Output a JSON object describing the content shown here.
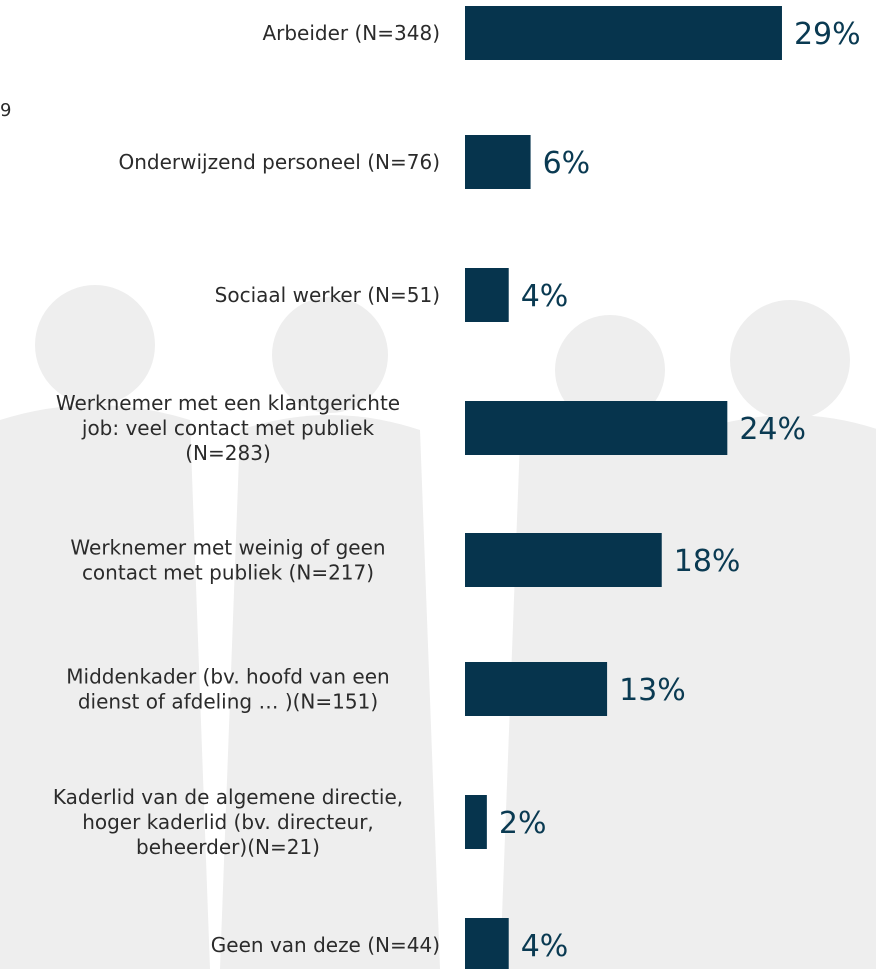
{
  "stray_text": "9",
  "colors": {
    "bar": "#06344d",
    "value_text": "#0a3a52",
    "label_text": "#2b2b2b"
  },
  "chart_data": {
    "type": "bar",
    "orientation": "horizontal",
    "categories": [
      [
        "Arbeider (N=348)"
      ],
      [
        "Onderwijzend personeel (N=76)"
      ],
      [
        "Sociaal werker (N=51)"
      ],
      [
        "Werknemer met een klantgerichte",
        "job: veel contact met publiek",
        "(N=283)"
      ],
      [
        "Werknemer met weinig of geen",
        "contact met publiek (N=217)"
      ],
      [
        "Middenkader (bv. hoofd van een",
        "dienst of afdeling … )(N=151)"
      ],
      [
        "Kaderlid van de algemene directie,",
        "hoger kaderlid (bv. directeur,",
        "beheerder)(N=21)"
      ],
      [
        "Geen van deze (N=44)"
      ]
    ],
    "values": [
      29,
      6,
      4,
      24,
      18,
      13,
      2,
      4
    ],
    "value_labels": [
      "29%",
      "6%",
      "4%",
      "24%",
      "18%",
      "13%",
      "2%",
      "4%"
    ],
    "unit": "%",
    "grid": false,
    "legend": "none"
  }
}
